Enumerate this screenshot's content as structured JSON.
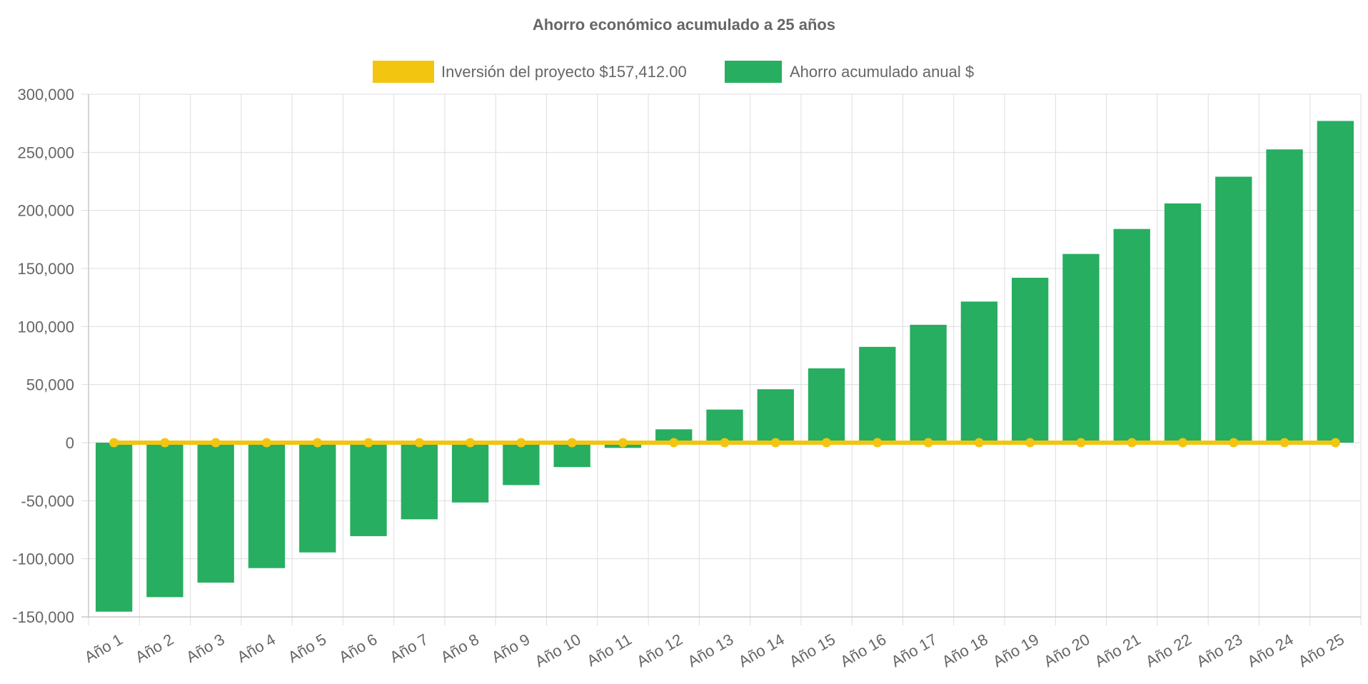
{
  "colors": {
    "investment": "#f2c511",
    "savings": "#27ae60",
    "text": "#666666",
    "grid": "#dddddd"
  },
  "chart_data": {
    "type": "bar",
    "title": "Ahorro económico acumulado a 25 años",
    "xlabel": "",
    "ylabel": "",
    "legend_position": "top",
    "grid": true,
    "categories": [
      "Año 1",
      "Año 2",
      "Año 3",
      "Año 4",
      "Año 5",
      "Año 6",
      "Año 7",
      "Año 8",
      "Año 9",
      "Año 10",
      "Año 11",
      "Año 12",
      "Año 13",
      "Año 14",
      "Año 15",
      "Año 16",
      "Año 17",
      "Año 18",
      "Año 19",
      "Año 20",
      "Año 21",
      "Año 22",
      "Año 23",
      "Año 24",
      "Año 25"
    ],
    "series": [
      {
        "name": "Inversión del proyecto $157,412.00",
        "type": "line",
        "color": "#f2c511",
        "values": [
          0,
          0,
          0,
          0,
          0,
          0,
          0,
          0,
          0,
          0,
          0,
          0,
          0,
          0,
          0,
          0,
          0,
          0,
          0,
          0,
          0,
          0,
          0,
          0,
          0
        ]
      },
      {
        "name": "Ahorro acumulado anual $",
        "type": "bar",
        "color": "#27ae60",
        "values": [
          -145500,
          -133000,
          -120500,
          -108000,
          -94500,
          -80500,
          -66000,
          -51500,
          -36500,
          -21000,
          -4500,
          11500,
          28500,
          46000,
          64000,
          82500,
          101500,
          121500,
          142000,
          162500,
          184000,
          206000,
          229000,
          252500,
          277000
        ]
      }
    ],
    "ylim": [
      -150000,
      300000
    ],
    "yticks": [
      300000,
      250000,
      200000,
      150000,
      100000,
      50000,
      0,
      -50000,
      -100000,
      -150000
    ],
    "ytick_labels": [
      "300,000",
      "250,000",
      "200,000",
      "150,000",
      "100,000",
      "50,000",
      "0",
      "-50,000",
      "-100,000",
      "-150,000"
    ]
  }
}
